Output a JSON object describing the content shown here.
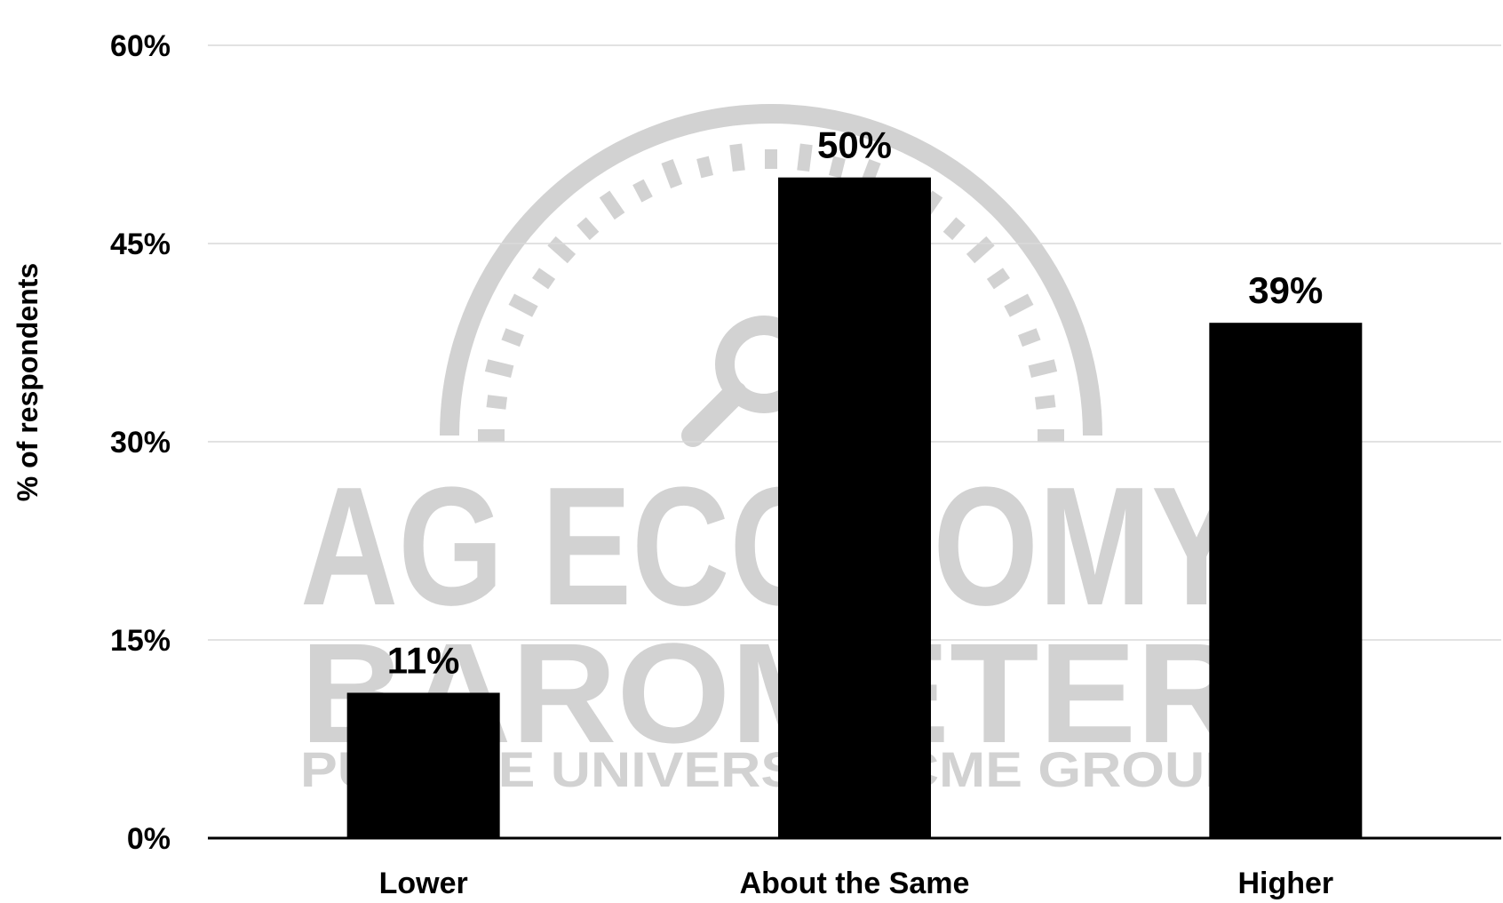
{
  "chart_data": {
    "type": "bar",
    "categories": [
      "Lower",
      "About the Same",
      "Higher"
    ],
    "values": [
      11,
      50,
      39
    ],
    "data_labels": [
      "11%",
      "50%",
      "39%"
    ],
    "ylabel": "% of respondents",
    "ylim": [
      0,
      60
    ],
    "yticks": [
      0,
      15,
      30,
      45,
      60
    ],
    "ytick_labels": [
      "0%",
      "15%",
      "30%",
      "45%",
      "60%"
    ],
    "grid": true,
    "bar_color": "#000000",
    "grid_color": "#d9d9d9"
  },
  "watermark": {
    "line1": "AG ECONOMY",
    "line2": "BAROMETER",
    "line3": "PURDUE UNIVERSITY   CME GROUP",
    "color": "#d2d2d2"
  }
}
